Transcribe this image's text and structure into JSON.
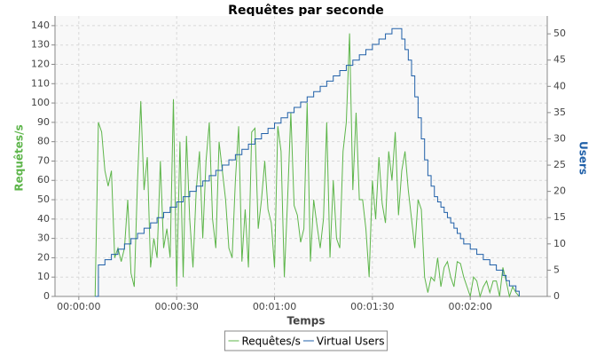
{
  "chart_data": {
    "type": "line",
    "title": "Requêtes par seconde",
    "x_label": "Temps",
    "y_label": "Requêtes/s",
    "y2_label": "Users",
    "x": [
      5,
      6,
      7,
      8,
      9,
      10,
      11,
      12,
      13,
      14,
      15,
      16,
      17,
      18,
      19,
      20,
      21,
      22,
      23,
      24,
      25,
      26,
      27,
      28,
      29,
      30,
      31,
      32,
      33,
      34,
      35,
      36,
      37,
      38,
      39,
      40,
      41,
      42,
      43,
      44,
      45,
      46,
      47,
      48,
      49,
      50,
      51,
      52,
      53,
      54,
      55,
      56,
      57,
      58,
      59,
      60,
      61,
      62,
      63,
      64,
      65,
      66,
      67,
      68,
      69,
      70,
      71,
      72,
      73,
      74,
      75,
      76,
      77,
      78,
      79,
      80,
      81,
      82,
      83,
      84,
      85,
      86,
      87,
      88,
      89,
      90,
      91,
      92,
      93,
      94,
      95,
      96,
      97,
      98,
      99,
      100,
      101,
      102,
      103,
      104,
      105,
      106,
      107,
      108,
      109,
      110,
      111,
      112,
      113,
      114,
      115,
      116,
      117,
      118,
      119,
      120,
      121,
      122,
      123,
      124,
      125,
      126,
      127,
      128,
      129,
      130,
      131,
      132,
      133,
      134,
      135
    ],
    "xlim": [
      -7.3,
      143.6
    ],
    "xticks": [
      {
        "value": 0,
        "label": "00:00:00"
      },
      {
        "value": 30,
        "label": "00:00:30"
      },
      {
        "value": 60,
        "label": "00:01:00"
      },
      {
        "value": 90,
        "label": "00:01:30"
      },
      {
        "value": 120,
        "label": "00:02:00"
      }
    ],
    "ylim": [
      0,
      145
    ],
    "yticks": [
      0,
      10,
      20,
      30,
      40,
      50,
      60,
      70,
      80,
      90,
      100,
      110,
      120,
      130,
      140
    ],
    "y2lim": [
      0,
      53.4
    ],
    "y2ticks": [
      0,
      5,
      10,
      15,
      20,
      25,
      30,
      35,
      40,
      45,
      50
    ],
    "grid": true,
    "legend": "bottom",
    "series": [
      {
        "name": "Requêtes/s",
        "color": "#5db54a",
        "axis": "y",
        "values": [
          0,
          90,
          85,
          65,
          57,
          65,
          20,
          25,
          18,
          25,
          50,
          12,
          5,
          60,
          101,
          55,
          72,
          15,
          30,
          20,
          70,
          25,
          35,
          20,
          102,
          5,
          80,
          10,
          83,
          40,
          15,
          55,
          75,
          30,
          70,
          90,
          40,
          25,
          80,
          65,
          50,
          25,
          20,
          60,
          88,
          18,
          45,
          15,
          85,
          87,
          35,
          50,
          70,
          45,
          38,
          15,
          88,
          75,
          10,
          50,
          95,
          47,
          42,
          28,
          35,
          100,
          18,
          50,
          37,
          25,
          40,
          90,
          20,
          60,
          30,
          25,
          75,
          90,
          136,
          55,
          95,
          50,
          50,
          35,
          10,
          60,
          40,
          72,
          48,
          38,
          75,
          60,
          85,
          42,
          65,
          75,
          55,
          40,
          25,
          50,
          45,
          10,
          2,
          10,
          8,
          20,
          5,
          15,
          18,
          10,
          5,
          18,
          17,
          10,
          5,
          0,
          10,
          8,
          0,
          5,
          8,
          2,
          8,
          8,
          0,
          15,
          8,
          0,
          5,
          2,
          0
        ]
      },
      {
        "name": "Virtual Users",
        "color": "#1f5fa8",
        "axis": "y2",
        "step": "post",
        "values": [
          0,
          6,
          6,
          7,
          7,
          8,
          8,
          9,
          9,
          10,
          10,
          11,
          11,
          12,
          12,
          13,
          13,
          14,
          14,
          15,
          15,
          16,
          16,
          17,
          17,
          18,
          18,
          19,
          19,
          20,
          20,
          21,
          21,
          22,
          22,
          23,
          23,
          24,
          24,
          25,
          25,
          26,
          26,
          27,
          27,
          28,
          28,
          29,
          29,
          30,
          30,
          31,
          31,
          32,
          32,
          33,
          33,
          34,
          34,
          35,
          35,
          36,
          36,
          37,
          37,
          38,
          38,
          39,
          39,
          40,
          40,
          41,
          41,
          42,
          42,
          43,
          43,
          44,
          44,
          45,
          45,
          46,
          46,
          47,
          47,
          48,
          48,
          49,
          49,
          50,
          50,
          51,
          51,
          51,
          49,
          47,
          45,
          42,
          38,
          34,
          30,
          26,
          23,
          21,
          19,
          18,
          17,
          16,
          15,
          14,
          13,
          12,
          11,
          10,
          10,
          9,
          9,
          8,
          8,
          7,
          7,
          6,
          6,
          5,
          5,
          4,
          3,
          2,
          2,
          1,
          0
        ]
      }
    ]
  }
}
